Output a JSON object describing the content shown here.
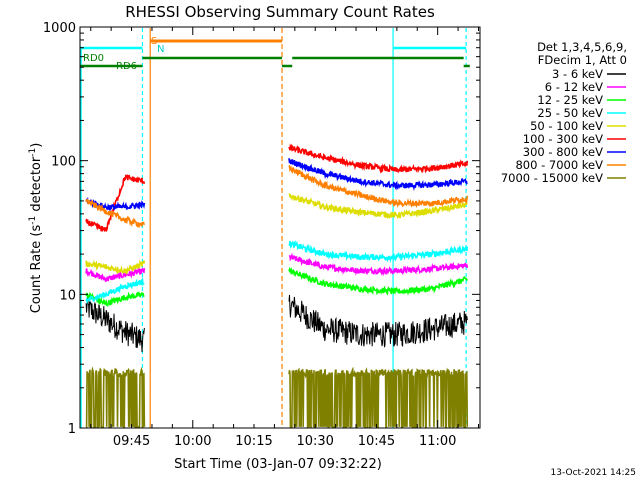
{
  "chart_data": {
    "type": "line",
    "title": "RHESSI Observing Summary Count Rates",
    "xlabel": "Start Time (03-Jan-07 09:32:22)",
    "ylabel_main": "Count Rate (s",
    "ylabel_sup1": "-1",
    "ylabel_mid": " detector",
    "ylabel_sup2": "-1",
    "ylabel_end": ")",
    "yscale": "log",
    "ylim": [
      1,
      1000
    ],
    "xlim_minutes": [
      0,
      98
    ],
    "x_ticks": [
      {
        "m": 12.63,
        "label": "09:45"
      },
      {
        "m": 27.63,
        "label": "10:00"
      },
      {
        "m": 42.63,
        "label": "10:15"
      },
      {
        "m": 57.63,
        "label": "10:30"
      },
      {
        "m": 72.63,
        "label": "10:45"
      },
      {
        "m": 87.63,
        "label": "11:00"
      }
    ],
    "y_ticks": [
      {
        "v": 1,
        "label": "1"
      },
      {
        "v": 10,
        "label": "10"
      },
      {
        "v": 100,
        "label": "100"
      },
      {
        "v": 1000,
        "label": "1000"
      }
    ],
    "legend": {
      "header": [
        "Det 1,3,4,5,6,9,",
        "FDecim 1, Att 0"
      ],
      "placement": "right"
    },
    "series": [
      {
        "name": "3 - 6 keV",
        "color": "#000000",
        "seg1": [
          8,
          6.5,
          5.2,
          4.5
        ],
        "seg2": [
          8.5,
          5.5,
          5.0,
          5.0,
          5.5,
          6.2
        ]
      },
      {
        "name": "6 - 12 keV",
        "color": "#ff00ff",
        "seg1": [
          15,
          13,
          14,
          15
        ],
        "seg2": [
          19,
          16,
          15,
          15,
          15.5,
          16.5
        ]
      },
      {
        "name": "12 - 25 keV",
        "color": "#00ff00",
        "seg1": [
          10,
          8.5,
          9.5,
          10
        ],
        "seg2": [
          15,
          12,
          11,
          10.5,
          11,
          13
        ]
      },
      {
        "name": "25 - 50 keV",
        "color": "#00ffff",
        "seg1": [
          9,
          10,
          11.5,
          12.5
        ],
        "seg2": [
          24,
          20,
          19,
          19,
          20,
          22
        ]
      },
      {
        "name": "50 - 100 keV",
        "color": "#dddd00",
        "seg1": [
          17,
          16,
          15,
          17
        ],
        "seg2": [
          55,
          45,
          41,
          39,
          42,
          47
        ]
      },
      {
        "name": "100 - 300 keV",
        "color": "#ff0000",
        "seg1": [
          35,
          30,
          75,
          70
        ],
        "seg2": [
          125,
          105,
          92,
          85,
          88,
          95
        ]
      },
      {
        "name": "300 - 800 keV",
        "color": "#0000ff",
        "seg1": [
          50,
          45,
          45,
          47
        ],
        "seg2": [
          100,
          80,
          70,
          65,
          66,
          70
        ]
      },
      {
        "name": "800 - 7000 keV",
        "color": "#ff8000",
        "seg1": [
          50,
          42,
          36,
          33
        ],
        "seg2": [
          88,
          65,
          55,
          48,
          48,
          52
        ]
      },
      {
        "name": "7000 - 15000 keV",
        "color": "#808000",
        "seg1": [
          2.6,
          2.5,
          2.5,
          2.5
        ],
        "seg2": [
          2.5,
          2.5,
          2.5,
          2.5,
          2.5,
          2.5
        ]
      }
    ],
    "annotations": {
      "s_label": "S",
      "n_label": "N",
      "rd0_label": "RD0",
      "rd6_label": "RD6"
    }
  },
  "footer": {
    "timestamp": "13-Oct-2021 14:25"
  }
}
